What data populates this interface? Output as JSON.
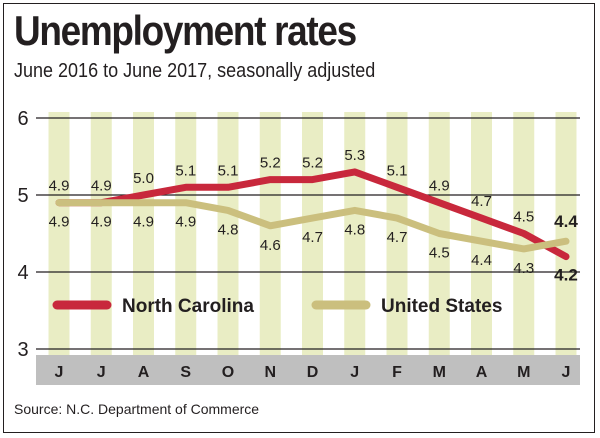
{
  "title": "Unemployment rates",
  "subtitle": "June 2016 to June 2017, seasonally adjusted",
  "source": "Source: N.C. Department of Commerce",
  "colors": {
    "north_carolina": "#c8283c",
    "united_states": "#cbbf7e",
    "column_band": "#e9edc4",
    "axis_bar": "#bfbfbf",
    "grid": "#231f20"
  },
  "chart_data": {
    "type": "line",
    "categories": [
      "J",
      "J",
      "A",
      "S",
      "O",
      "N",
      "D",
      "J",
      "F",
      "M",
      "A",
      "M",
      "J"
    ],
    "ylim": [
      3,
      6
    ],
    "yticks": [
      "3",
      "4",
      "5",
      "6"
    ],
    "grid": true,
    "legend_position": "bottom-center",
    "series": [
      {
        "name": "North Carolina",
        "color": "#c8283c",
        "values": [
          4.9,
          4.9,
          5.0,
          5.1,
          5.1,
          5.2,
          5.2,
          5.3,
          5.1,
          4.9,
          4.7,
          4.5,
          4.2
        ],
        "labels": [
          "4.9",
          "4.9",
          "5.0",
          "5.1",
          "5.1",
          "5.2",
          "5.2",
          "5.3",
          "5.1",
          "4.9",
          "4.7",
          "4.5",
          "4.2"
        ]
      },
      {
        "name": "United States",
        "color": "#cbbf7e",
        "values": [
          4.9,
          4.9,
          4.9,
          4.9,
          4.8,
          4.6,
          4.7,
          4.8,
          4.7,
          4.5,
          4.4,
          4.3,
          4.4
        ],
        "labels": [
          "4.9",
          "4.9",
          "4.9",
          "4.9",
          "4.8",
          "4.6",
          "4.7",
          "4.8",
          "4.7",
          "4.5",
          "4.4",
          "4.3",
          "4.4"
        ]
      }
    ]
  }
}
